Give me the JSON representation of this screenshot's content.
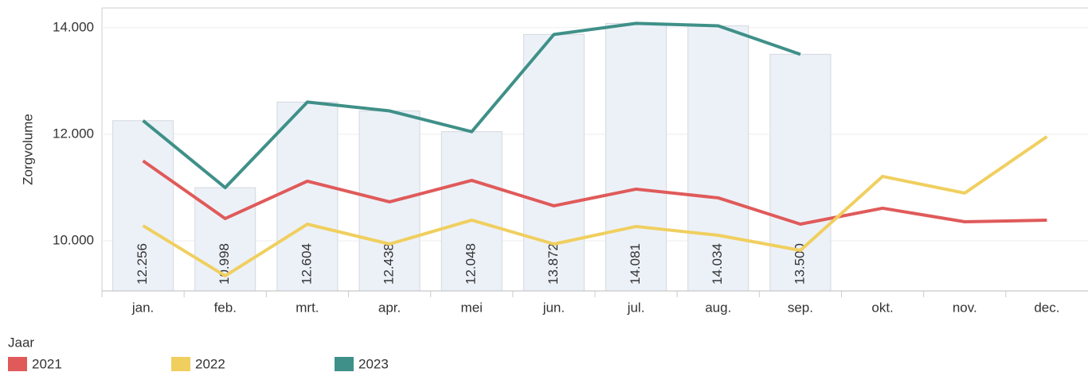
{
  "chart_data": {
    "type": "line",
    "y_label": "Zorgvolume",
    "categories": [
      "jan.",
      "feb.",
      "mrt.",
      "apr.",
      "mei",
      "jun.",
      "jul.",
      "aug.",
      "sep.",
      "okt.",
      "nov.",
      "dec."
    ],
    "series": [
      {
        "name": "2021",
        "color": "#e05a5a",
        "values": [
          11500,
          10418,
          11120,
          10731,
          11134,
          10657,
          10970,
          10806,
          10313,
          10612,
          10358,
          10388
        ]
      },
      {
        "name": "2022",
        "color": "#f0cf5f",
        "values": [
          10284,
          9343,
          10313,
          9940,
          10388,
          9940,
          10269,
          10104,
          9821,
          11209,
          10896,
          11955
        ]
      },
      {
        "name": "2023",
        "color": "#3f9088",
        "bar_color": "#ecf1f8",
        "values": [
          12256,
          10998,
          12604,
          12438,
          12048,
          13872,
          14081,
          14034,
          13500,
          null,
          null,
          null
        ],
        "value_labels": [
          "12.256",
          "10.998",
          "12.604",
          "12.438",
          "12.048",
          "13.872",
          "14.081",
          "14.034",
          "13.500",
          null,
          null,
          null
        ]
      }
    ],
    "bar_series": 2,
    "ylim": [
      9060,
      14370
    ],
    "yticks": [
      {
        "value": 10000,
        "label": "10.000"
      },
      {
        "value": 12000,
        "label": "12.000"
      },
      {
        "value": 14000,
        "label": "14.000"
      }
    ],
    "grid": true,
    "legend_title": "Jaar",
    "legend": "bottom-left"
  }
}
